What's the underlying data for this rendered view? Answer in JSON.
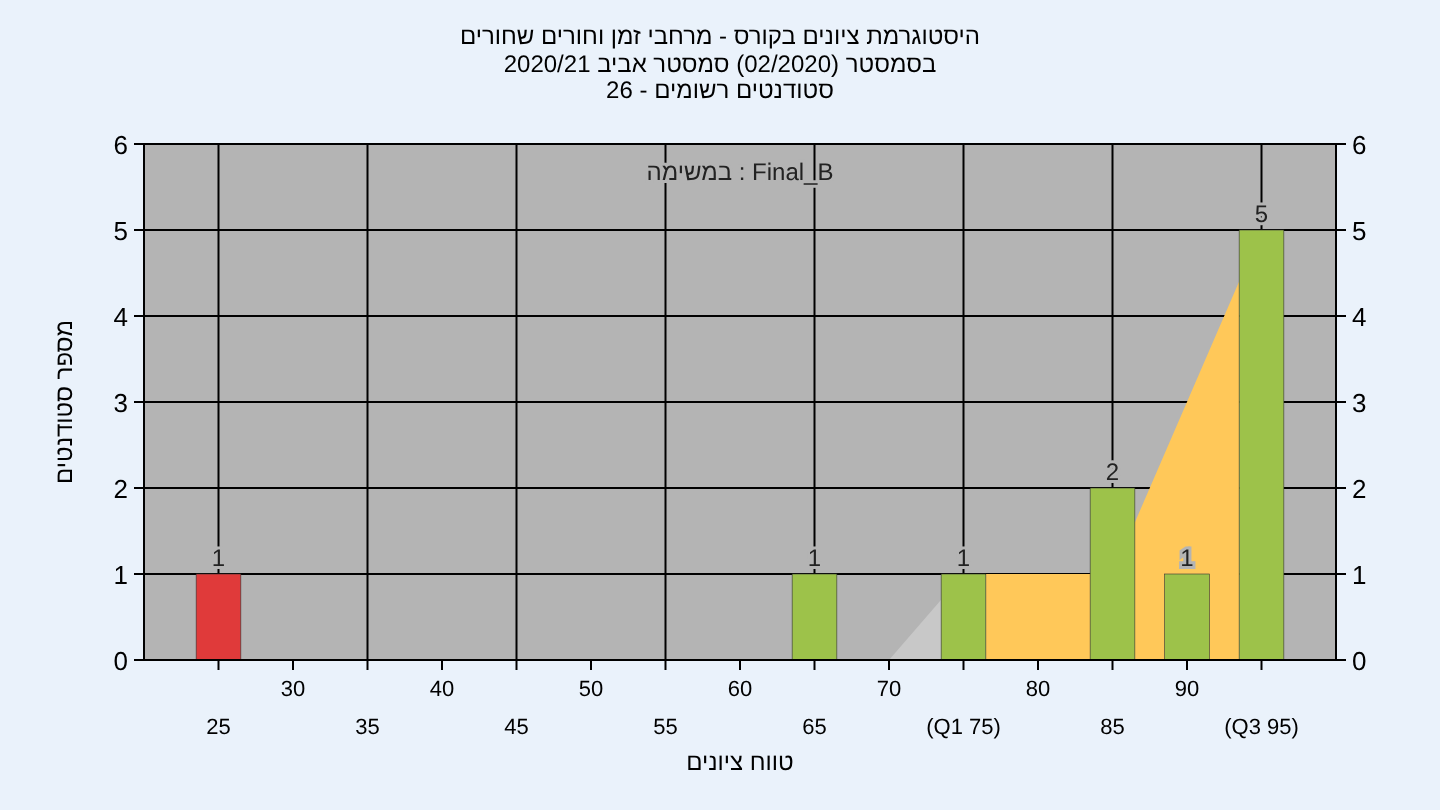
{
  "chart_data": {
    "type": "bar",
    "title": "היסטוגרמת ציונים בקורס - מרחבי זמן וחורים שחורים",
    "subtitle": "בסמסטר  (02/2020)  סמסטר אביב 2020/21\nסטודנטים רשומים - 26",
    "xlabel": "טווח ציונים",
    "ylabel": "מספר סטודנטים",
    "annotations": [
      "במשימה : Final_B"
    ],
    "series": [
      {
        "type": "area",
        "color": "#c8c8c8",
        "x": [
          70,
          73.5
        ],
        "values": [
          0,
          0.7
        ]
      },
      {
        "type": "area",
        "color": "#ffc859",
        "x": [
          76.5,
          83.5,
          86.5,
          93.5
        ],
        "values": [
          1,
          1,
          1.6,
          4.4
        ]
      },
      {
        "type": "bar",
        "x": [
          25,
          65,
          75,
          85,
          90,
          95
        ],
        "values": [
          1,
          1,
          1,
          2,
          1,
          5
        ],
        "value_labels": [
          "1",
          "1",
          "1",
          "2",
          "1",
          "5"
        ],
        "colors": [
          "#e03a3a",
          "#9dc24a",
          "#9dc24a",
          "#9dc24a",
          "#9dc24a",
          "#9dc24a"
        ]
      }
    ],
    "xlim": [
      20,
      100
    ],
    "xticks": [
      25,
      35,
      45,
      55,
      65,
      {
        "value": 75,
        "label": "(Q1 75)"
      },
      85,
      {
        "value": 95,
        "label": "(Q3 95)"
      }
    ],
    "x2lim": [
      20,
      100
    ],
    "x2ticks": [
      30,
      40,
      50,
      60,
      70,
      80,
      90
    ],
    "ylim": [
      0,
      6
    ],
    "yticks": [
      0,
      1,
      2,
      3,
      4,
      5,
      6
    ],
    "y2lim": [
      0,
      6
    ],
    "y2ticks": [
      0,
      1,
      2,
      3,
      4,
      5,
      6
    ],
    "grid": true
  }
}
